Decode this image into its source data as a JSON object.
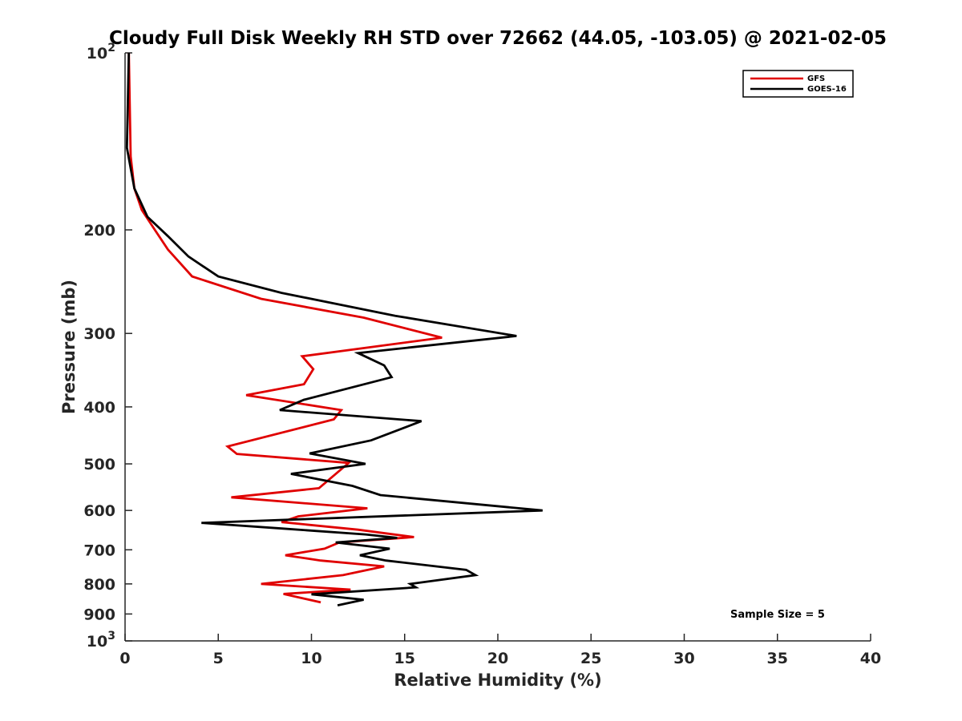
{
  "chart_data": {
    "type": "line",
    "title": "Cloudy Full Disk Weekly RH STD over 72662 (44.05, -103.05) @ 2021-02-05",
    "xlabel": "Relative Humidity (%)",
    "ylabel": "Pressure (mb)",
    "xlim": [
      0,
      40
    ],
    "ylim": [
      100,
      1000
    ],
    "y_scale": "log",
    "y_reversed": true,
    "x_ticks": [
      "0",
      "5",
      "10",
      "15",
      "20",
      "25",
      "30",
      "35",
      "40"
    ],
    "y_ticks": [
      {
        "value": 100,
        "base": "10",
        "exp": "2"
      },
      {
        "value": 200,
        "label": "200"
      },
      {
        "value": 300,
        "label": "300"
      },
      {
        "value": 400,
        "label": "400"
      },
      {
        "value": 500,
        "label": "500"
      },
      {
        "value": 600,
        "label": "600"
      },
      {
        "value": 700,
        "label": "700"
      },
      {
        "value": 800,
        "label": "800"
      },
      {
        "value": 900,
        "label": "900"
      },
      {
        "value": 1000,
        "base": "10",
        "exp": "3"
      }
    ],
    "grid": false,
    "legend_position": "top-right",
    "series": [
      {
        "name": "GFS",
        "color": "#e00000",
        "points": [
          [
            0.2,
            100
          ],
          [
            0.3,
            150
          ],
          [
            0.5,
            170
          ],
          [
            0.9,
            185
          ],
          [
            1.6,
            200
          ],
          [
            2.3,
            216
          ],
          [
            3.6,
            240
          ],
          [
            7.3,
            262
          ],
          [
            12.8,
            282
          ],
          [
            17.0,
            305
          ],
          [
            9.5,
            328
          ],
          [
            10.1,
            345
          ],
          [
            9.6,
            366
          ],
          [
            6.5,
            382
          ],
          [
            11.6,
            405
          ],
          [
            11.2,
            420
          ],
          [
            5.5,
            467
          ],
          [
            6.0,
            481
          ],
          [
            12.0,
            498
          ],
          [
            10.4,
            550
          ],
          [
            5.7,
            570
          ],
          [
            13.0,
            595
          ],
          [
            9.3,
            614
          ],
          [
            8.4,
            628
          ],
          [
            12.5,
            647
          ],
          [
            15.5,
            666
          ],
          [
            11.5,
            680
          ],
          [
            10.7,
            697
          ],
          [
            8.6,
            715
          ],
          [
            10.5,
            730
          ],
          [
            13.9,
            747
          ],
          [
            11.7,
            773
          ],
          [
            7.3,
            800
          ],
          [
            12.1,
            818
          ],
          [
            8.5,
            832
          ],
          [
            10.5,
            860
          ]
        ]
      },
      {
        "name": "GOES-16",
        "color": "#000000",
        "points": [
          [
            0.2,
            100
          ],
          [
            0.1,
            145
          ],
          [
            0.5,
            170
          ],
          [
            1.2,
            190
          ],
          [
            2.3,
            205
          ],
          [
            3.4,
            222
          ],
          [
            5.0,
            240
          ],
          [
            8.4,
            256
          ],
          [
            14.5,
            280
          ],
          [
            21.0,
            303
          ],
          [
            12.5,
            324
          ],
          [
            13.9,
            340
          ],
          [
            14.3,
            356
          ],
          [
            9.6,
            389
          ],
          [
            8.3,
            405
          ],
          [
            15.9,
            423
          ],
          [
            13.2,
            456
          ],
          [
            9.9,
            480
          ],
          [
            12.9,
            500
          ],
          [
            8.9,
            520
          ],
          [
            12.2,
            545
          ],
          [
            13.7,
            565
          ],
          [
            22.4,
            600
          ],
          [
            4.1,
            630
          ],
          [
            8.4,
            644
          ],
          [
            12.9,
            659
          ],
          [
            14.6,
            668
          ],
          [
            11.3,
            680
          ],
          [
            14.2,
            697
          ],
          [
            12.6,
            715
          ],
          [
            14.0,
            730
          ],
          [
            18.3,
            757
          ],
          [
            18.8,
            773
          ],
          [
            15.3,
            800
          ],
          [
            15.6,
            811
          ],
          [
            10.0,
            833
          ],
          [
            12.8,
            851
          ],
          [
            11.4,
            870
          ]
        ]
      }
    ],
    "annotation": "Sample Size = 5"
  }
}
